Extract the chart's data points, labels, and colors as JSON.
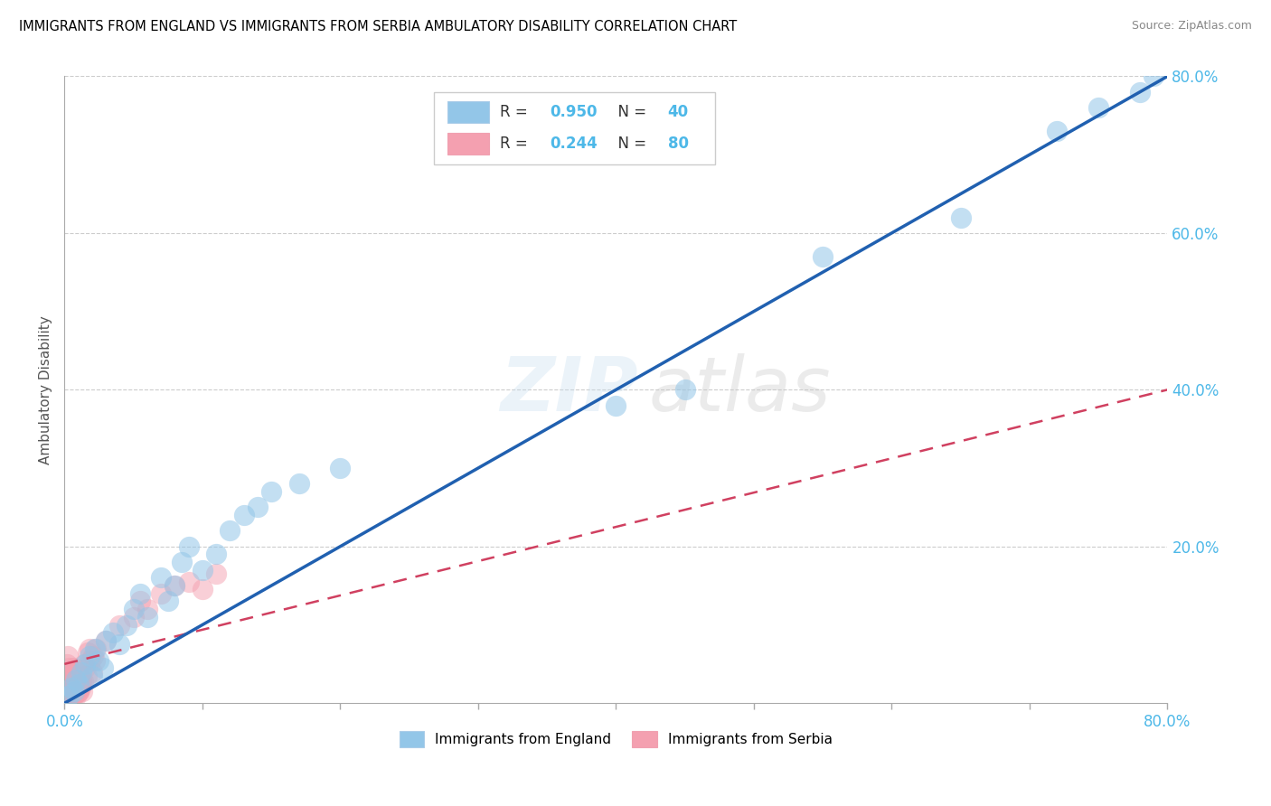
{
  "title": "IMMIGRANTS FROM ENGLAND VS IMMIGRANTS FROM SERBIA AMBULATORY DISABILITY CORRELATION CHART",
  "source": "Source: ZipAtlas.com",
  "ylabel": "Ambulatory Disability",
  "legend_england": "Immigrants from England",
  "legend_serbia": "Immigrants from Serbia",
  "legend_r_england": "R = 0.950",
  "legend_n_england": "N = 40",
  "legend_r_serbia": "R = 0.244",
  "legend_n_serbia": "N = 80",
  "watermark": "ZIPatlas",
  "england_color": "#93c6e8",
  "serbia_color": "#f4a0b0",
  "england_line_color": "#2060b0",
  "serbia_line_color": "#d04060",
  "axis_tick_color": "#4db8e8",
  "r_value_color": "#4db8e8",
  "england_scatter_x": [
    0.3,
    0.5,
    0.7,
    0.8,
    1.0,
    1.2,
    1.5,
    1.8,
    2.0,
    2.2,
    2.5,
    2.8,
    3.0,
    3.5,
    4.0,
    4.5,
    5.0,
    5.5,
    6.0,
    7.0,
    7.5,
    8.0,
    8.5,
    9.0,
    10.0,
    11.0,
    12.0,
    13.0,
    14.0,
    15.0,
    17.0,
    20.0,
    40.0,
    45.0,
    55.0,
    65.0,
    72.0,
    75.0,
    78.0,
    79.0
  ],
  "england_scatter_y": [
    1.0,
    2.0,
    1.5,
    3.0,
    2.5,
    4.0,
    5.0,
    6.0,
    3.5,
    7.0,
    5.5,
    4.5,
    8.0,
    9.0,
    7.5,
    10.0,
    12.0,
    14.0,
    11.0,
    16.0,
    13.0,
    15.0,
    18.0,
    20.0,
    17.0,
    19.0,
    22.0,
    24.0,
    25.0,
    27.0,
    28.0,
    30.0,
    38.0,
    40.0,
    57.0,
    62.0,
    73.0,
    76.0,
    78.0,
    80.0
  ],
  "serbia_scatter_x": [
    0.05,
    0.08,
    0.1,
    0.12,
    0.15,
    0.18,
    0.2,
    0.25,
    0.3,
    0.35,
    0.4,
    0.45,
    0.5,
    0.55,
    0.6,
    0.65,
    0.7,
    0.75,
    0.8,
    0.85,
    0.9,
    0.95,
    1.0,
    1.05,
    1.1,
    1.15,
    1.2,
    1.25,
    1.3,
    1.35,
    0.1,
    0.2,
    0.3,
    0.4,
    0.5,
    0.6,
    0.7,
    0.8,
    0.9,
    1.0,
    0.15,
    0.25,
    0.35,
    0.45,
    0.55,
    0.65,
    0.75,
    0.85,
    0.95,
    1.05,
    1.4,
    1.5,
    1.6,
    1.7,
    1.8,
    1.9,
    2.0,
    2.1,
    2.2,
    2.3,
    3.0,
    4.0,
    5.0,
    5.5,
    6.0,
    7.0,
    8.0,
    9.0,
    10.0,
    11.0,
    0.05,
    0.1,
    0.15,
    0.2,
    0.25,
    0.3,
    0.4,
    0.5,
    0.6,
    0.7
  ],
  "serbia_scatter_y": [
    0.5,
    1.0,
    1.5,
    0.8,
    2.0,
    1.2,
    1.8,
    1.0,
    2.5,
    1.5,
    2.0,
    0.8,
    3.0,
    1.5,
    2.2,
    1.0,
    2.8,
    1.5,
    2.0,
    3.0,
    1.8,
    2.5,
    2.0,
    1.5,
    3.5,
    2.0,
    2.5,
    3.0,
    1.5,
    2.8,
    3.5,
    1.0,
    4.0,
    2.5,
    1.8,
    3.5,
    4.5,
    2.0,
    3.0,
    1.5,
    0.5,
    1.5,
    2.0,
    3.5,
    1.0,
    2.5,
    3.5,
    1.0,
    2.0,
    4.0,
    5.0,
    4.5,
    3.5,
    6.5,
    7.0,
    5.5,
    4.0,
    6.0,
    5.5,
    7.0,
    8.0,
    10.0,
    11.0,
    13.0,
    12.0,
    14.0,
    15.0,
    15.5,
    14.5,
    16.5,
    4.0,
    3.0,
    5.0,
    2.5,
    6.0,
    4.5,
    1.5,
    2.5,
    3.5,
    1.0
  ],
  "xmin": 0,
  "xmax": 80,
  "ymin": 0,
  "ymax": 80,
  "yticks": [
    20,
    40,
    60,
    80
  ],
  "ytick_labels": [
    "20.0%",
    "40.0%",
    "60.0%",
    "80.0%"
  ],
  "england_trend_x0": 0,
  "england_trend_y0": 0,
  "england_trend_x1": 80,
  "england_trend_y1": 80,
  "serbia_trend_x0": 0,
  "serbia_trend_y0": 5,
  "serbia_trend_x1": 80,
  "serbia_trend_y1": 40
}
